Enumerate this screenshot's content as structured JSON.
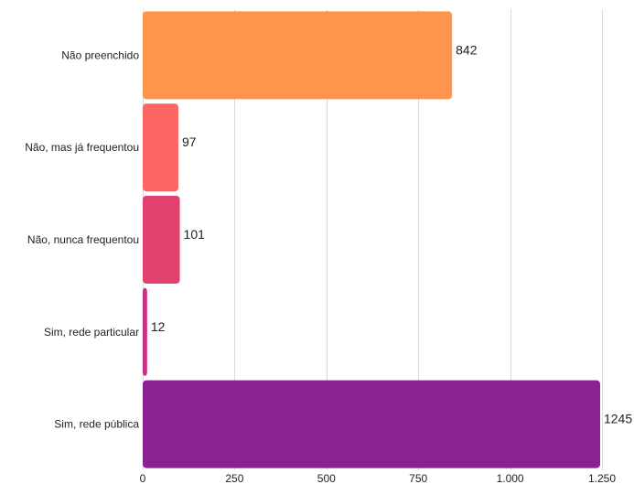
{
  "chart_data": {
    "type": "bar",
    "orientation": "horizontal",
    "title": "",
    "xlabel": "",
    "ylabel": "",
    "categories": [
      "Não preenchido",
      "Não, mas já frequentou",
      "Não, nunca frequentou",
      "Sim, rede particular",
      "Sim, rede pública"
    ],
    "values": [
      842,
      97,
      101,
      12,
      1245
    ],
    "value_labels": [
      "842",
      "97",
      "101",
      "12",
      "1245"
    ],
    "colors": [
      "#ff944d",
      "#fd6562",
      "#e2416f",
      "#c82f88",
      "#8a2391"
    ],
    "xlim": [
      0,
      1250
    ],
    "x_ticks": [
      0,
      250,
      500,
      750,
      1000,
      1250
    ],
    "x_tick_labels": [
      "0",
      "250",
      "500",
      "750",
      "1.000",
      "1.250"
    ],
    "grid": true,
    "legend": "none"
  }
}
